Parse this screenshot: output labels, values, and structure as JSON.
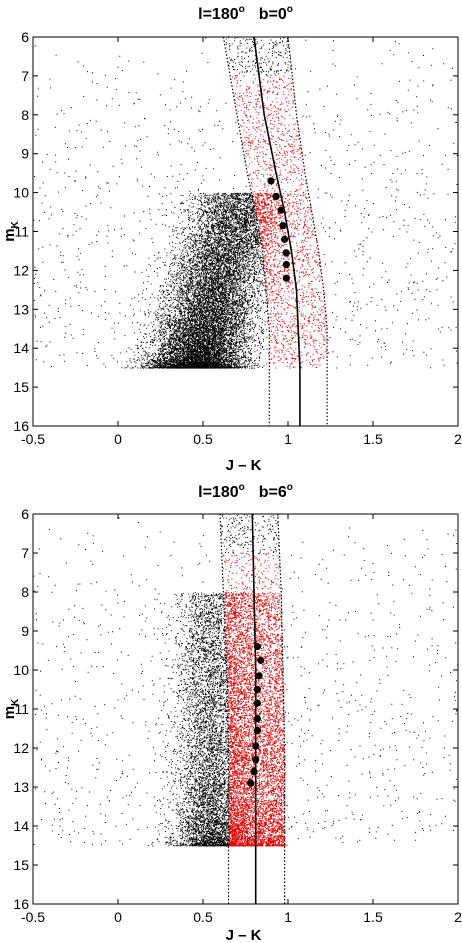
{
  "chart_data": [
    {
      "type": "scatter",
      "title": {
        "l_text": "l=180",
        "l_sup": "o",
        "b_text": "b=0",
        "b_sup": "o"
      },
      "xlabel": "J – K",
      "ylabel": {
        "main": "m",
        "sub": "K"
      },
      "xlim": [
        -0.5,
        2
      ],
      "ylim": [
        6,
        16
      ],
      "y_inverted": true,
      "xticks": [
        "-0.5",
        "0",
        "0.5",
        "1",
        "1.5",
        "2"
      ],
      "yticks": [
        "6",
        "7",
        "8",
        "9",
        "10",
        "11",
        "12",
        "13",
        "14",
        "15",
        "16"
      ],
      "grid": false,
      "colors": {
        "field": "#000000",
        "selected": "#e00000",
        "curve": "#000000"
      },
      "ridge_curve": [
        [
          0.8,
          6.0
        ],
        [
          0.86,
          8.0
        ],
        [
          0.93,
          9.5
        ],
        [
          0.98,
          10.5
        ],
        [
          1.02,
          11.5
        ],
        [
          1.05,
          12.5
        ],
        [
          1.06,
          13.5
        ],
        [
          1.07,
          14.5
        ],
        [
          1.07,
          16.0
        ]
      ],
      "left_boundary": [
        [
          0.62,
          6.0
        ],
        [
          0.7,
          8.0
        ],
        [
          0.76,
          9.5
        ],
        [
          0.81,
          10.5
        ],
        [
          0.85,
          11.5
        ],
        [
          0.87,
          12.5
        ],
        [
          0.89,
          13.5
        ],
        [
          0.89,
          14.5
        ],
        [
          0.89,
          16.0
        ]
      ],
      "right_boundary": [
        [
          1.0,
          6.0
        ],
        [
          1.05,
          8.0
        ],
        [
          1.1,
          9.5
        ],
        [
          1.14,
          10.5
        ],
        [
          1.18,
          11.5
        ],
        [
          1.21,
          12.5
        ],
        [
          1.23,
          13.5
        ],
        [
          1.23,
          14.5
        ],
        [
          1.23,
          16.0
        ]
      ],
      "large_markers": [
        [
          0.9,
          9.7
        ],
        [
          0.93,
          10.1
        ],
        [
          0.96,
          10.45
        ],
        [
          0.97,
          10.85
        ],
        [
          0.98,
          11.2
        ],
        [
          0.99,
          11.55
        ],
        [
          0.99,
          11.85
        ],
        [
          0.99,
          12.2
        ]
      ],
      "mag_limit": 14.5
    },
    {
      "type": "scatter",
      "title": {
        "l_text": "l=180",
        "l_sup": "o",
        "b_text": "b=6",
        "b_sup": "o"
      },
      "xlabel": "J – K",
      "ylabel": {
        "main": "m",
        "sub": "K"
      },
      "xlim": [
        -0.5,
        2
      ],
      "ylim": [
        6,
        16
      ],
      "y_inverted": true,
      "xticks": [
        "-0.5",
        "0",
        "0.5",
        "1",
        "1.5",
        "2"
      ],
      "yticks": [
        "6",
        "7",
        "8",
        "9",
        "10",
        "11",
        "12",
        "13",
        "14",
        "15",
        "16"
      ],
      "grid": false,
      "colors": {
        "field": "#000000",
        "selected": "#e00000",
        "curve": "#000000"
      },
      "ridge_curve": [
        [
          0.79,
          6.0
        ],
        [
          0.8,
          8.0
        ],
        [
          0.81,
          10.0
        ],
        [
          0.81,
          12.0
        ],
        [
          0.81,
          14.0
        ],
        [
          0.81,
          16.0
        ]
      ],
      "left_boundary": [
        [
          0.6,
          6.0
        ],
        [
          0.62,
          8.0
        ],
        [
          0.64,
          10.0
        ],
        [
          0.65,
          12.0
        ],
        [
          0.65,
          14.0
        ],
        [
          0.65,
          16.0
        ]
      ],
      "right_boundary": [
        [
          0.94,
          6.0
        ],
        [
          0.96,
          8.0
        ],
        [
          0.97,
          10.0
        ],
        [
          0.98,
          12.0
        ],
        [
          0.98,
          14.0
        ],
        [
          0.98,
          16.0
        ]
      ],
      "large_markers": [
        [
          0.82,
          9.4
        ],
        [
          0.84,
          9.75
        ],
        [
          0.83,
          10.15
        ],
        [
          0.82,
          10.5
        ],
        [
          0.82,
          10.85
        ],
        [
          0.82,
          11.25
        ],
        [
          0.82,
          11.55
        ],
        [
          0.81,
          11.95
        ],
        [
          0.81,
          12.3
        ],
        [
          0.8,
          12.6
        ],
        [
          0.78,
          12.9
        ]
      ],
      "mag_limit": 14.5
    }
  ]
}
